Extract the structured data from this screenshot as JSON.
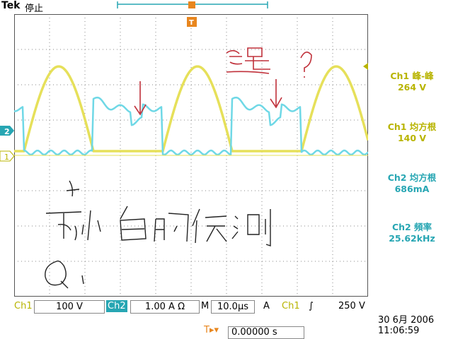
{
  "header": {
    "brand": "Tek",
    "status": "停止"
  },
  "measurements": [
    {
      "label": "Ch1 峰-峰",
      "value": "264 V",
      "channel": "ch1"
    },
    {
      "label": "Ch1 均方根",
      "value": "140 V",
      "channel": "ch1"
    },
    {
      "label": "Ch2 均方根",
      "value": "686mA",
      "channel": "ch2"
    },
    {
      "label": "Ch2 頻率",
      "value": "25.62kHz",
      "channel": "ch2"
    }
  ],
  "markers": {
    "ch2_marker": "2",
    "ch1_marker": "1",
    "trigger_marker": "T"
  },
  "bottom_bar": {
    "ch1_label": "Ch1",
    "ch1_scale": "100 V",
    "ch2_label": "Ch2",
    "ch2_scale": "1.00 A Ω",
    "m_label": "M",
    "timebase": "10.0µs",
    "trig_mode": "A",
    "trig_source": "Ch1",
    "trig_slope": "∫",
    "trig_level": "250 V"
  },
  "trigger_position": {
    "icon": "T▸▾",
    "value": "0.00000 s"
  },
  "datetime": {
    "date": "30 6月  2006",
    "time": "11:06:59"
  },
  "annotations": {
    "handwritten_top": "这是？",
    "handwritten_middle": "T2 小 的时候测",
    "handwritten_bottom": "Q"
  },
  "colors": {
    "ch1": "#e6e05a",
    "ch2": "#6fd8e6",
    "grid": "#8a8a8a",
    "ink": "#c0303a",
    "pen": "#222222"
  }
}
